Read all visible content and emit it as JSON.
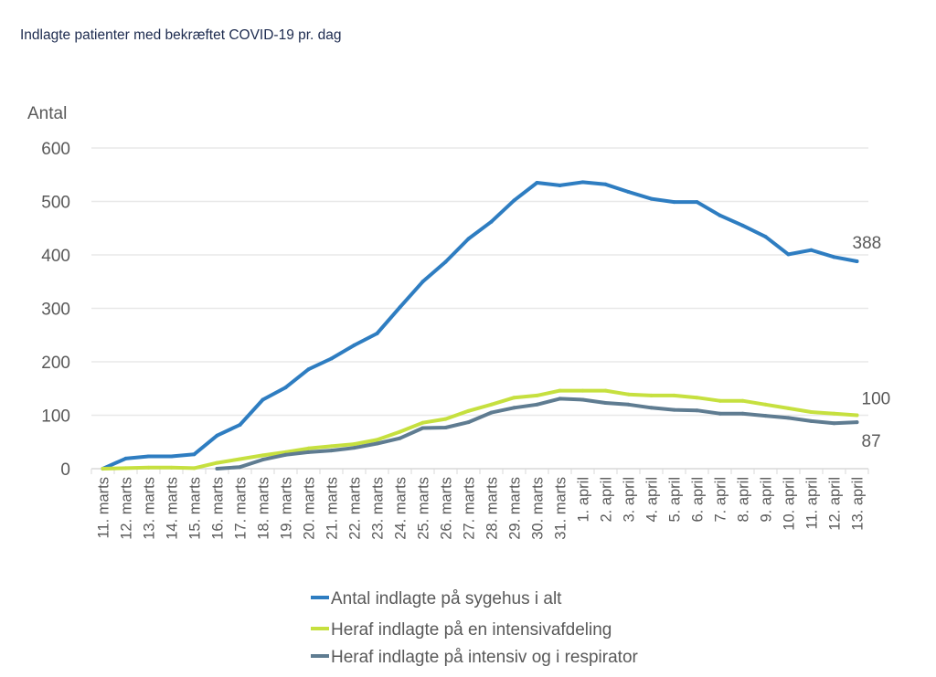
{
  "chart_data": {
    "type": "line",
    "title": "Indlagte patienter med bekræftet COVID-19 pr. dag",
    "ylabel": "Antal",
    "xlabel": "",
    "ylim": [
      0,
      600
    ],
    "yticks": [
      0,
      100,
      200,
      300,
      400,
      500,
      600
    ],
    "grid": true,
    "legend_position": "bottom",
    "categories": [
      "11. marts",
      "12. marts",
      "13. marts",
      "14. marts",
      "15. marts",
      "16. marts",
      "17. marts",
      "18. marts",
      "19. marts",
      "20. marts",
      "21. marts",
      "22. marts",
      "23. marts",
      "24. marts",
      "25. marts",
      "26. marts",
      "27. marts",
      "28. marts",
      "29. marts",
      "30. marts",
      "31. marts",
      "1. april",
      "2. april",
      "3. april",
      "4. april",
      "5. april",
      "6. april",
      "7. april",
      "8. april",
      "9. april",
      "10. april",
      "11. april",
      "12. april",
      "13. april"
    ],
    "series": [
      {
        "name": "Antal indlagte på sygehus i alt",
        "color": "#2e7dc1",
        "end_label": "388",
        "values": [
          0,
          19,
          23,
          23,
          27,
          62,
          82,
          129,
          152,
          186,
          206,
          231,
          253,
          302,
          350,
          387,
          430,
          462,
          502,
          535,
          530,
          536,
          532,
          518,
          505,
          499,
          499,
          474,
          455,
          434,
          401,
          409,
          396,
          388
        ]
      },
      {
        "name": "Heraf indlagte på en intensivafdeling",
        "color": "#c6e03f",
        "end_label": "100",
        "values": [
          0,
          1,
          2,
          2,
          1,
          11,
          18,
          25,
          31,
          38,
          42,
          46,
          54,
          69,
          86,
          93,
          108,
          120,
          133,
          137,
          146,
          146,
          146,
          139,
          137,
          137,
          133,
          127,
          127,
          120,
          113,
          106,
          103,
          100
        ]
      },
      {
        "name": "Heraf indlagte på intensiv og i respirator",
        "color": "#5f7c91",
        "end_label": "87",
        "values": [
          null,
          null,
          null,
          null,
          null,
          0,
          3,
          17,
          26,
          31,
          34,
          39,
          47,
          57,
          76,
          77,
          87,
          105,
          114,
          120,
          131,
          129,
          123,
          120,
          114,
          110,
          109,
          103,
          103,
          99,
          95,
          89,
          85,
          87
        ]
      }
    ]
  }
}
